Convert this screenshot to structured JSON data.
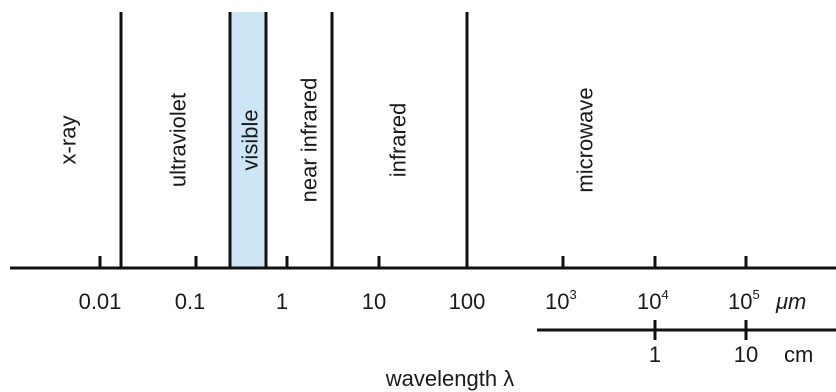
{
  "regions": [
    {
      "name": "x-ray"
    },
    {
      "name": "ultraviolet"
    },
    {
      "name": "visible",
      "highlight_color": "#cde6f5"
    },
    {
      "name": "near infrared"
    },
    {
      "name": "infrared"
    },
    {
      "name": "microwave"
    }
  ],
  "micrometer_axis": {
    "unit": "μm",
    "ticks": [
      {
        "value": 0.01,
        "base": "0.01",
        "exp": ""
      },
      {
        "value": 0.1,
        "base": "0.1",
        "exp": ""
      },
      {
        "value": 1,
        "base": "1",
        "exp": ""
      },
      {
        "value": 10,
        "base": "10",
        "exp": ""
      },
      {
        "value": 100,
        "base": "100",
        "exp": ""
      },
      {
        "value": 1000,
        "base": "10",
        "exp": "3"
      },
      {
        "value": 10000,
        "base": "10",
        "exp": "4"
      },
      {
        "value": 100000,
        "base": "10",
        "exp": "5"
      }
    ]
  },
  "centimeter_axis": {
    "unit": "cm",
    "ticks": [
      {
        "label": "1"
      },
      {
        "label": "10"
      }
    ]
  },
  "axis_title": "wavelength λ",
  "colors": {
    "line": "#111111",
    "visible_fill": "#cde6f5"
  }
}
